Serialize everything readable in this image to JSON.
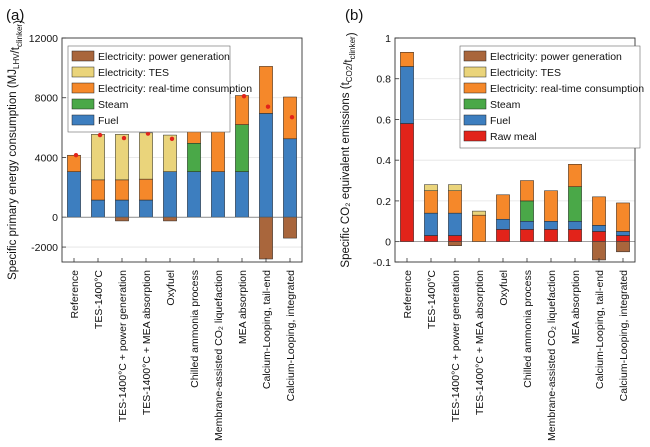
{
  "chart_data": [
    {
      "panel_label": "(a)",
      "type": "bar",
      "stacked": true,
      "categories": [
        "Reference",
        "TES-1400°C",
        "TES-1400°C + power generation",
        "TES-1400°C + MEA absorption",
        "Oxyfuel",
        "Chilled ammonia process",
        "Membrane-assisted CO₂ liquefaction",
        "MEA absorption",
        "Calcium-Looping, tail-end",
        "Calcium-Looping, integrated"
      ],
      "ylabel": "Specific primary energy consumption (MJ_LHV/t_clinker)",
      "ylim": [
        -3000,
        12000
      ],
      "yticks": [
        -2000,
        0,
        4000,
        8000,
        12000
      ],
      "ytick_labels": [
        "-2000",
        "0",
        "4000",
        "8000",
        "12000"
      ],
      "grid": true,
      "legend_position": "top-left",
      "series": [
        {
          "name": "Fuel",
          "color": "#3d7ebf",
          "values": [
            3050,
            1150,
            1150,
            1150,
            3050,
            3050,
            3050,
            3050,
            6950,
            5250
          ]
        },
        {
          "name": "Steam",
          "color": "#4aa848",
          "values": [
            0,
            0,
            0,
            0,
            0,
            1900,
            0,
            3150,
            0,
            0
          ]
        },
        {
          "name": "Electricity: real-time consumption",
          "color": "#f5882a",
          "values": [
            1100,
            1350,
            1350,
            1400,
            0,
            1650,
            3300,
            1950,
            3150,
            2800
          ]
        },
        {
          "name": "Electricity: TES",
          "color": "#ead47b",
          "values": [
            0,
            3050,
            3050,
            3100,
            2450,
            0,
            0,
            0,
            0,
            0
          ]
        },
        {
          "name": "Electricity: power generation",
          "color": "#a9663c",
          "values": [
            0,
            0,
            -250,
            0,
            -250,
            0,
            0,
            0,
            -2800,
            -1400
          ]
        }
      ],
      "net_markers": {
        "color": "#e2231a",
        "values": [
          4150,
          5500,
          5300,
          5600,
          5250,
          6600,
          6400,
          8100,
          7400,
          6700
        ]
      }
    },
    {
      "panel_label": "(b)",
      "type": "bar",
      "stacked": true,
      "categories": [
        "Reference",
        "TES-1400°C",
        "TES-1400°C + power generation",
        "TES-1400°C + MEA absorption",
        "Oxyfuel",
        "Chilled ammonia process",
        "Membrane-assisted CO₂ liquefaction",
        "MEA absorption",
        "Calcium-Looping, tail-end",
        "Calcium-Looping, integrated"
      ],
      "ylabel": "Specific CO₂ equivalent emissions (t_CO2/t_clinker)",
      "ylim": [
        -0.1,
        1.0
      ],
      "yticks": [
        -0.1,
        0,
        0.2,
        0.4,
        0.6,
        0.8,
        1
      ],
      "ytick_labels": [
        "-0.1",
        "0",
        "0.2",
        "0.4",
        "0.6",
        "0.8",
        "1"
      ],
      "grid": true,
      "legend_position": "top-right",
      "series": [
        {
          "name": "Raw meal",
          "color": "#e2231a",
          "values": [
            0.58,
            0.03,
            0.03,
            0.0,
            0.06,
            0.06,
            0.06,
            0.06,
            0.05,
            0.03
          ]
        },
        {
          "name": "Fuel",
          "color": "#3d7ebf",
          "values": [
            0.28,
            0.11,
            0.11,
            0.0,
            0.05,
            0.04,
            0.04,
            0.04,
            0.03,
            0.02
          ]
        },
        {
          "name": "Steam",
          "color": "#4aa848",
          "values": [
            0,
            0,
            0,
            0,
            0,
            0.1,
            0,
            0.17,
            0,
            0
          ]
        },
        {
          "name": "Electricity: real-time consumption",
          "color": "#f5882a",
          "values": [
            0.07,
            0.11,
            0.11,
            0.13,
            0.12,
            0.1,
            0.15,
            0.11,
            0.14,
            0.14
          ]
        },
        {
          "name": "Electricity: TES",
          "color": "#ead47b",
          "values": [
            0,
            0.03,
            0.03,
            0.02,
            0,
            0,
            0,
            0,
            0,
            0
          ]
        },
        {
          "name": "Electricity: power generation",
          "color": "#a9663c",
          "values": [
            0,
            0,
            -0.02,
            0,
            0,
            0,
            0,
            0,
            -0.09,
            -0.05
          ]
        }
      ]
    }
  ]
}
